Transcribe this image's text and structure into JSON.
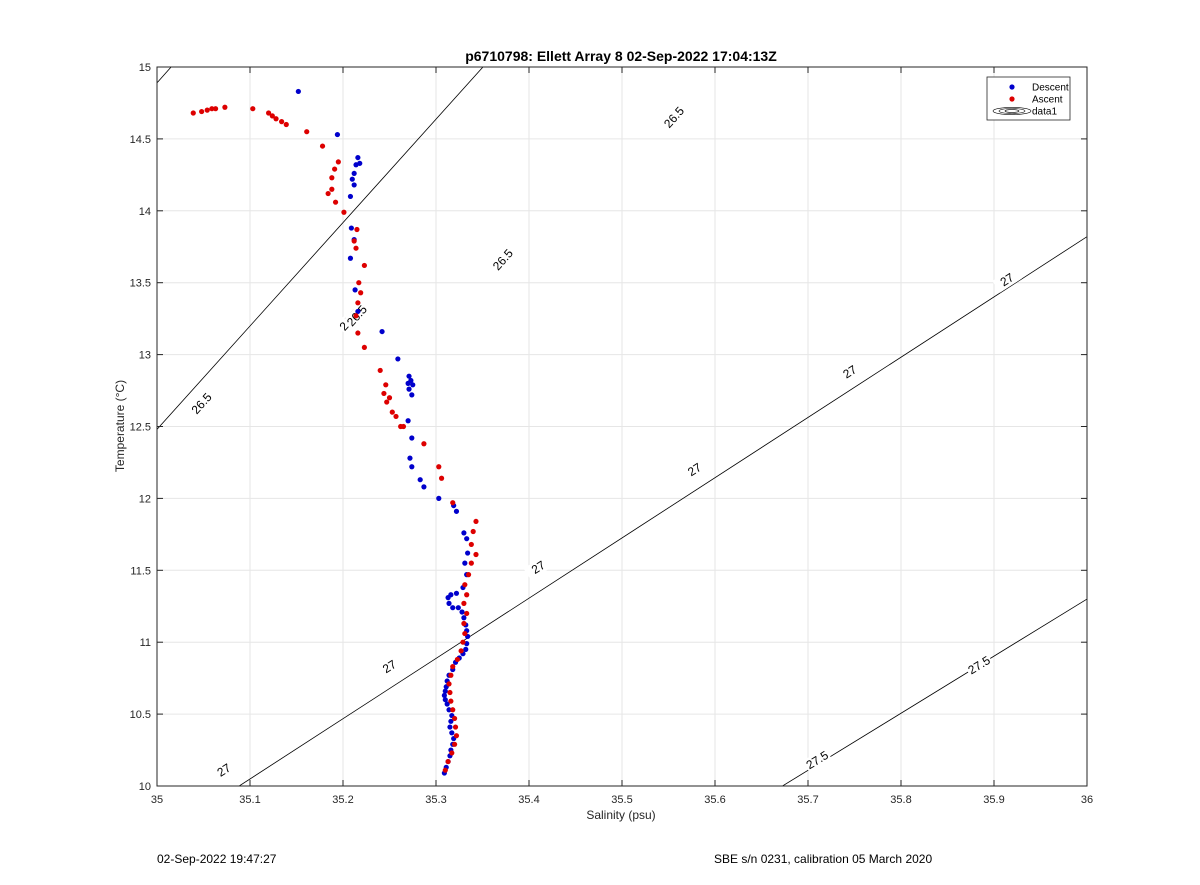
{
  "footer": {
    "timestamp": "02-Sep-2022 19:47:27",
    "calibration": "SBE s/n 0231, calibration 05 March 2020"
  },
  "chart_data": {
    "type": "scatter",
    "title": "p6710798: Ellett Array 8 02-Sep-2022 17:04:13Z",
    "xlabel": "Salinity (psu)",
    "ylabel": "Temperature (°C)",
    "xlim": [
      35,
      36
    ],
    "ylim": [
      10,
      15
    ],
    "x_ticks": [
      35,
      35.1,
      35.2,
      35.3,
      35.4,
      35.5,
      35.6,
      35.7,
      35.8,
      35.9,
      36
    ],
    "x_tick_labels": [
      "35",
      "35.1",
      "35.2",
      "35.3",
      "35.4",
      "35.5",
      "35.6",
      "35.7",
      "35.8",
      "35.9",
      "36"
    ],
    "y_ticks": [
      10,
      10.5,
      11,
      11.5,
      12,
      12.5,
      13,
      13.5,
      14,
      14.5,
      15
    ],
    "y_tick_labels": [
      "10",
      "10.5",
      "11",
      "11.5",
      "12",
      "12.5",
      "13",
      "13.5",
      "14",
      "14.5",
      "15"
    ],
    "grid": true,
    "legend_position": "top-right",
    "colors": {
      "descent": "#0000cc",
      "ascent": "#dd0000",
      "contour": "#000000",
      "grid": "#e6e6e6"
    },
    "legend": [
      "Descent",
      "Ascent",
      "data1"
    ],
    "contours": [
      {
        "level": "26.5",
        "line": [
          [
            35.0,
            14.89
          ],
          [
            36.0,
            22.15
          ]
        ],
        "labels": [
          {
            "s": 35.207,
            "t": 13.24,
            "text": "26.5"
          },
          {
            "s": 35.372,
            "t": 13.66,
            "text": "26.5"
          },
          {
            "s": 35.556,
            "t": 14.65,
            "text": "26.5"
          }
        ]
      },
      {
        "level": "26.5",
        "line": [
          [
            35.0,
            12.48
          ],
          [
            36.0,
            19.67
          ]
        ],
        "labels": [
          {
            "s": 35.048,
            "t": 12.66,
            "text": "26.5"
          },
          {
            "s": 35.215,
            "t": 13.27,
            "text": "26.5"
          }
        ]
      },
      {
        "level": "27",
        "line": [
          [
            35.0,
            9.63
          ],
          [
            36.0,
            13.82
          ]
        ],
        "labels": [
          {
            "s": 35.072,
            "t": 10.11,
            "text": "27"
          },
          {
            "s": 35.25,
            "t": 10.83,
            "text": "27"
          },
          {
            "s": 35.41,
            "t": 11.52,
            "text": "27"
          },
          {
            "s": 35.578,
            "t": 12.2,
            "text": "27"
          },
          {
            "s": 35.745,
            "t": 12.88,
            "text": "27"
          },
          {
            "s": 35.914,
            "t": 13.52,
            "text": "27"
          }
        ]
      },
      {
        "level": "27.5",
        "line": [
          [
            35.67,
            9.99
          ],
          [
            36.0,
            11.3
          ]
        ],
        "labels": [
          {
            "s": 35.71,
            "t": 10.18,
            "text": "27.5"
          },
          {
            "s": 35.884,
            "t": 10.84,
            "text": "27.5"
          }
        ]
      }
    ],
    "series": [
      {
        "name": "Descent",
        "points": [
          [
            35.152,
            14.83
          ],
          [
            35.194,
            14.53
          ],
          [
            35.216,
            14.37
          ],
          [
            35.214,
            14.32
          ],
          [
            35.218,
            14.33
          ],
          [
            35.212,
            14.26
          ],
          [
            35.21,
            14.22
          ],
          [
            35.212,
            14.18
          ],
          [
            35.208,
            14.1
          ],
          [
            35.209,
            13.88
          ],
          [
            35.212,
            13.8
          ],
          [
            35.208,
            13.67
          ],
          [
            35.213,
            13.45
          ],
          [
            35.216,
            13.3
          ],
          [
            35.242,
            13.16
          ],
          [
            35.259,
            12.97
          ],
          [
            35.271,
            12.85
          ],
          [
            35.273,
            12.82
          ],
          [
            35.27,
            12.8
          ],
          [
            35.275,
            12.79
          ],
          [
            35.271,
            12.76
          ],
          [
            35.274,
            12.72
          ],
          [
            35.27,
            12.54
          ],
          [
            35.274,
            12.42
          ],
          [
            35.272,
            12.28
          ],
          [
            35.274,
            12.22
          ],
          [
            35.283,
            12.13
          ],
          [
            35.287,
            12.08
          ],
          [
            35.303,
            12.0
          ],
          [
            35.319,
            11.95
          ],
          [
            35.322,
            11.91
          ],
          [
            35.33,
            11.76
          ],
          [
            35.333,
            11.72
          ],
          [
            35.334,
            11.62
          ],
          [
            35.331,
            11.55
          ],
          [
            35.333,
            11.47
          ],
          [
            35.329,
            11.38
          ],
          [
            35.322,
            11.34
          ],
          [
            35.316,
            11.33
          ],
          [
            35.313,
            11.31
          ],
          [
            35.314,
            11.27
          ],
          [
            35.318,
            11.24
          ],
          [
            35.324,
            11.24
          ],
          [
            35.328,
            11.21
          ],
          [
            35.33,
            11.17
          ],
          [
            35.332,
            11.12
          ],
          [
            35.333,
            11.08
          ],
          [
            35.334,
            11.04
          ],
          [
            35.333,
            10.99
          ],
          [
            35.332,
            10.95
          ],
          [
            35.329,
            10.92
          ],
          [
            35.325,
            10.89
          ],
          [
            35.321,
            10.86
          ],
          [
            35.318,
            10.81
          ],
          [
            35.314,
            10.77
          ],
          [
            35.312,
            10.73
          ],
          [
            35.311,
            10.69
          ],
          [
            35.31,
            10.66
          ],
          [
            35.309,
            10.63
          ],
          [
            35.31,
            10.6
          ],
          [
            35.312,
            10.57
          ],
          [
            35.314,
            10.53
          ],
          [
            35.317,
            10.49
          ],
          [
            35.316,
            10.45
          ],
          [
            35.315,
            10.41
          ],
          [
            35.317,
            10.37
          ],
          [
            35.319,
            10.33
          ],
          [
            35.318,
            10.29
          ],
          [
            35.316,
            10.25
          ],
          [
            35.315,
            10.21
          ],
          [
            35.313,
            10.17
          ],
          [
            35.311,
            10.13
          ],
          [
            35.309,
            10.09
          ]
        ]
      },
      {
        "name": "Ascent",
        "points": [
          [
            35.039,
            14.68
          ],
          [
            35.048,
            14.69
          ],
          [
            35.054,
            14.7
          ],
          [
            35.059,
            14.71
          ],
          [
            35.063,
            14.71
          ],
          [
            35.073,
            14.72
          ],
          [
            35.103,
            14.71
          ],
          [
            35.12,
            14.68
          ],
          [
            35.124,
            14.66
          ],
          [
            35.128,
            14.64
          ],
          [
            35.134,
            14.62
          ],
          [
            35.139,
            14.6
          ],
          [
            35.161,
            14.55
          ],
          [
            35.178,
            14.45
          ],
          [
            35.195,
            14.34
          ],
          [
            35.191,
            14.29
          ],
          [
            35.188,
            14.23
          ],
          [
            35.188,
            14.15
          ],
          [
            35.184,
            14.12
          ],
          [
            35.192,
            14.06
          ],
          [
            35.201,
            13.99
          ],
          [
            35.215,
            13.87
          ],
          [
            35.212,
            13.79
          ],
          [
            35.214,
            13.74
          ],
          [
            35.223,
            13.62
          ],
          [
            35.217,
            13.5
          ],
          [
            35.219,
            13.43
          ],
          [
            35.216,
            13.36
          ],
          [
            35.214,
            13.27
          ],
          [
            35.216,
            13.15
          ],
          [
            35.223,
            13.05
          ],
          [
            35.24,
            12.89
          ],
          [
            35.246,
            12.79
          ],
          [
            35.244,
            12.73
          ],
          [
            35.25,
            12.7
          ],
          [
            35.247,
            12.67
          ],
          [
            35.253,
            12.6
          ],
          [
            35.257,
            12.57
          ],
          [
            35.262,
            12.5
          ],
          [
            35.265,
            12.5
          ],
          [
            35.287,
            12.38
          ],
          [
            35.303,
            12.22
          ],
          [
            35.306,
            12.14
          ],
          [
            35.318,
            11.97
          ],
          [
            35.343,
            11.84
          ],
          [
            35.34,
            11.77
          ],
          [
            35.338,
            11.68
          ],
          [
            35.343,
            11.61
          ],
          [
            35.338,
            11.55
          ],
          [
            35.335,
            11.47
          ],
          [
            35.331,
            11.4
          ],
          [
            35.333,
            11.33
          ],
          [
            35.33,
            11.27
          ],
          [
            35.333,
            11.2
          ],
          [
            35.33,
            11.13
          ],
          [
            35.331,
            11.06
          ],
          [
            35.329,
            11.0
          ],
          [
            35.327,
            10.94
          ],
          [
            35.323,
            10.88
          ],
          [
            35.318,
            10.83
          ],
          [
            35.316,
            10.77
          ],
          [
            35.314,
            10.71
          ],
          [
            35.315,
            10.65
          ],
          [
            35.316,
            10.59
          ],
          [
            35.318,
            10.53
          ],
          [
            35.32,
            10.47
          ],
          [
            35.321,
            10.41
          ],
          [
            35.322,
            10.35
          ],
          [
            35.32,
            10.29
          ],
          [
            35.317,
            10.23
          ],
          [
            35.313,
            10.17
          ],
          [
            35.31,
            10.11
          ]
        ]
      }
    ]
  }
}
